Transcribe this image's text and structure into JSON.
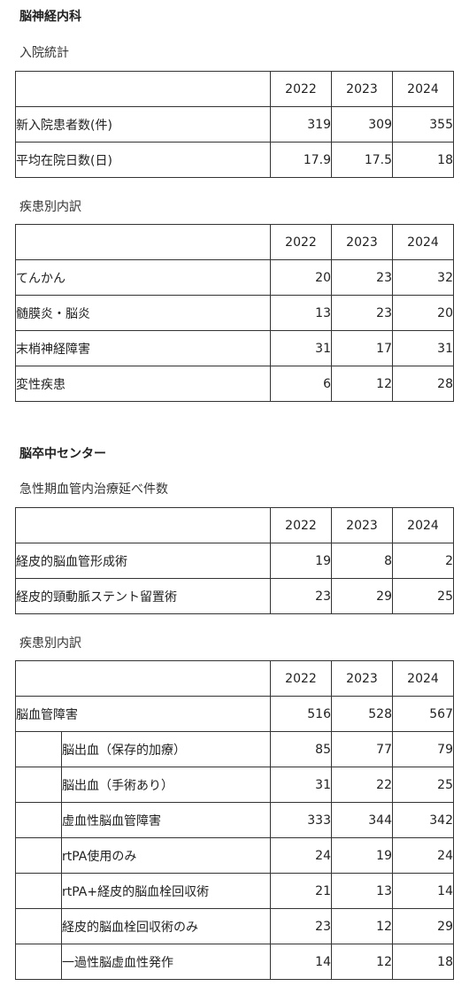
{
  "neuro": {
    "title": "脳神経内科",
    "admissions": {
      "title": "入院統計",
      "years": [
        "2022",
        "2023",
        "2024"
      ],
      "rows": [
        {
          "label": "新入院患者数(件)",
          "values": [
            "319",
            "309",
            "355"
          ]
        },
        {
          "label": "平均在院日数(日)",
          "values": [
            "17.9",
            "17.5",
            "18"
          ]
        }
      ]
    },
    "diseases": {
      "title": "疾患別内訳",
      "years": [
        "2022",
        "2023",
        "2024"
      ],
      "rows": [
        {
          "label": "てんかん",
          "values": [
            "20",
            "23",
            "32"
          ]
        },
        {
          "label": "髄膜炎・脳炎",
          "values": [
            "13",
            "23",
            "20"
          ]
        },
        {
          "label": "末梢神経障害",
          "values": [
            "31",
            "17",
            "31"
          ]
        },
        {
          "label": "変性疾患",
          "values": [
            "6",
            "12",
            "28"
          ]
        }
      ]
    }
  },
  "stroke": {
    "title": "脳卒中センター",
    "endovascular": {
      "title": "急性期血管内治療延べ件数",
      "years": [
        "2022",
        "2023",
        "2024"
      ],
      "rows": [
        {
          "label": "経皮的脳血管形成術",
          "values": [
            "19",
            "8",
            "2"
          ]
        },
        {
          "label": "経皮的頸動脈ステント留置術",
          "values": [
            "23",
            "29",
            "25"
          ]
        }
      ]
    },
    "diseases": {
      "title": "疾患別内訳",
      "years": [
        "2022",
        "2023",
        "2024"
      ],
      "top": {
        "label": "脳血管障害",
        "values": [
          "516",
          "528",
          "567"
        ]
      },
      "rows": [
        {
          "label": "脳出血（保存的加療）",
          "values": [
            "85",
            "77",
            "79"
          ]
        },
        {
          "label": "脳出血（手術あり）",
          "values": [
            "31",
            "22",
            "25"
          ]
        },
        {
          "label": "虚血性脳血管障害",
          "values": [
            "333",
            "344",
            "342"
          ]
        },
        {
          "label": "rtPA使用のみ",
          "values": [
            "24",
            "19",
            "24"
          ]
        },
        {
          "label": "rtPA+経皮的脳血栓回収術",
          "values": [
            "21",
            "13",
            "14"
          ]
        },
        {
          "label": "経皮的脳血栓回収術のみ",
          "values": [
            "23",
            "12",
            "29"
          ]
        },
        {
          "label": "一過性脳虚血性発作",
          "values": [
            "14",
            "12",
            "18"
          ]
        }
      ]
    }
  }
}
